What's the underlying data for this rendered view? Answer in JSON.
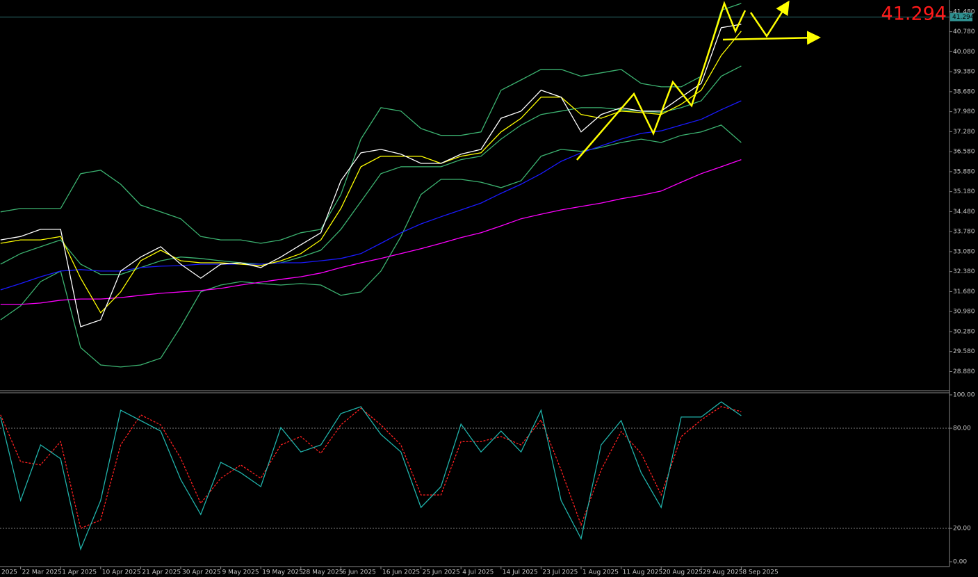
{
  "chart_data": [
    {
      "type": "line",
      "categories": [
        "2025",
        null,
        "22 Mar 2025",
        null,
        "1 Apr 2025",
        null,
        "10 Apr 2025",
        null,
        "21 Apr 2025",
        null,
        "30 Apr 2025",
        null,
        "9 May 2025",
        null,
        "19 May 2025",
        null,
        "28 May 2025",
        null,
        "6 Jun 2025",
        null,
        "16 Jun 2025",
        null,
        "25 Jun 2025",
        null,
        "4 Jul 2025",
        null,
        "14 Jul 2025",
        null,
        "23 Jul 2025",
        null,
        "1 Aug 2025",
        null,
        "11 Aug 2025",
        null,
        "20 Aug 2025",
        null,
        "29 Aug 2025",
        null,
        "8 Sep 2025"
      ],
      "ylim": [
        28.21,
        41.89
      ],
      "yticks": [
        {
          "value": 41.48,
          "label": "41.480"
        },
        {
          "value": 40.78,
          "label": "40.780"
        },
        {
          "value": 40.08,
          "label": "40.080"
        },
        {
          "value": 39.38,
          "label": "39.380"
        },
        {
          "value": 38.68,
          "label": "38.680"
        },
        {
          "value": 37.98,
          "label": "37.980"
        },
        {
          "value": 37.28,
          "label": "37.280"
        },
        {
          "value": 36.58,
          "label": "36.580"
        },
        {
          "value": 35.88,
          "label": "35.880"
        },
        {
          "value": 35.18,
          "label": "35.180"
        },
        {
          "value": 34.48,
          "label": "34.480"
        },
        {
          "value": 33.78,
          "label": "33.780"
        },
        {
          "value": 33.08,
          "label": "33.080"
        },
        {
          "value": 32.38,
          "label": "32.380"
        },
        {
          "value": 31.68,
          "label": "31.680"
        },
        {
          "value": 30.98,
          "label": "30.980"
        },
        {
          "value": 30.28,
          "label": "30.280"
        },
        {
          "value": 29.58,
          "label": "29.580"
        },
        {
          "value": 28.88,
          "label": "28.880"
        }
      ],
      "last_price": 41.294,
      "series": [
        {
          "color": "#3cb371",
          "values": [
            null,
            34.47,
            34.59,
            34.59,
            34.59,
            35.81,
            35.93,
            35.44,
            34.71,
            34.47,
            34.23,
            33.61,
            33.49,
            33.49,
            33.37,
            33.49,
            33.74,
            33.86,
            35.08,
            37.02,
            38.12,
            38.0,
            37.39,
            37.15,
            37.15,
            37.27,
            38.73,
            39.09,
            39.46,
            39.46,
            39.22,
            39.34,
            39.46,
            38.97,
            38.85,
            38.85,
            39.22,
            41.53,
            41.77
          ]
        },
        {
          "color": "#3cb371",
          "values": [
            null,
            32.64,
            33.01,
            33.25,
            33.49,
            32.64,
            32.28,
            32.28,
            32.52,
            32.76,
            32.89,
            32.84,
            32.76,
            32.69,
            32.64,
            32.69,
            32.89,
            33.13,
            33.86,
            34.83,
            35.81,
            36.05,
            36.05,
            36.05,
            36.3,
            36.42,
            37.02,
            37.51,
            37.88,
            38.0,
            38.12,
            38.12,
            38.05,
            38.0,
            37.95,
            38.12,
            38.36,
            39.22,
            39.58
          ]
        },
        {
          "color": "#3cb371",
          "values": [
            null,
            30.69,
            31.18,
            32.03,
            32.4,
            29.72,
            29.11,
            29.04,
            29.11,
            29.35,
            30.45,
            31.67,
            31.91,
            32.03,
            31.96,
            31.91,
            31.96,
            31.91,
            31.55,
            31.67,
            32.4,
            33.61,
            35.08,
            35.61,
            35.61,
            35.51,
            35.32,
            35.56,
            36.42,
            36.66,
            36.59,
            36.73,
            36.9,
            37.02,
            36.9,
            37.15,
            37.27,
            37.51,
            36.9
          ]
        },
        {
          "color": "#ff00ff",
          "values": [
            null,
            31.23,
            31.23,
            31.28,
            31.38,
            31.42,
            31.42,
            31.47,
            31.55,
            31.62,
            31.67,
            31.72,
            31.79,
            31.91,
            32.01,
            32.11,
            32.2,
            32.33,
            32.52,
            32.69,
            32.84,
            33.01,
            33.18,
            33.37,
            33.57,
            33.74,
            33.98,
            34.23,
            34.39,
            34.54,
            34.66,
            34.78,
            34.93,
            35.05,
            35.2,
            35.51,
            35.81,
            36.05,
            36.3
          ]
        },
        {
          "color": "#1a1aff",
          "values": [
            null,
            31.74,
            31.96,
            32.2,
            32.4,
            32.45,
            32.4,
            32.4,
            32.52,
            32.57,
            32.59,
            32.64,
            32.64,
            32.64,
            32.64,
            32.69,
            32.69,
            32.76,
            32.84,
            33.01,
            33.37,
            33.74,
            34.05,
            34.3,
            34.54,
            34.78,
            35.12,
            35.44,
            35.81,
            36.24,
            36.54,
            36.78,
            37.02,
            37.22,
            37.31,
            37.51,
            37.71,
            38.05,
            38.36
          ]
        },
        {
          "color": "#ffff00",
          "values": [
            null,
            33.37,
            33.49,
            33.49,
            33.61,
            32.15,
            30.94,
            31.67,
            32.76,
            33.13,
            32.76,
            32.69,
            32.69,
            32.64,
            32.59,
            32.76,
            33.01,
            33.49,
            34.59,
            36.05,
            36.42,
            36.42,
            36.42,
            36.17,
            36.42,
            36.54,
            37.27,
            37.75,
            38.49,
            38.49,
            37.88,
            37.75,
            38.0,
            37.95,
            37.88,
            38.24,
            38.73,
            39.95,
            40.8
          ]
        },
        {
          "color": "#ffffff",
          "values": [
            null,
            33.49,
            33.61,
            33.86,
            33.86,
            30.45,
            30.69,
            32.4,
            32.89,
            33.25,
            32.64,
            32.15,
            32.64,
            32.69,
            32.52,
            32.89,
            33.32,
            33.74,
            35.56,
            36.54,
            36.66,
            36.49,
            36.17,
            36.17,
            36.49,
            36.66,
            37.75,
            38.0,
            38.73,
            38.49,
            37.27,
            37.88,
            38.12,
            38.0,
            38.0,
            38.49,
            38.97,
            40.92,
            41.04
          ]
        }
      ]
    },
    {
      "type": "line",
      "ylim": [
        -2.9,
        101.25
      ],
      "yticks": [
        {
          "value": 100,
          "label": "100.00"
        },
        {
          "value": 80,
          "label": "80.00"
        },
        {
          "value": 20,
          "label": "20.00"
        },
        {
          "value": 0,
          "label": "0.00"
        }
      ],
      "series": [
        {
          "color": "#ff2020",
          "line_style": "dashed",
          "values": [
            null,
            88,
            60,
            58,
            72,
            20,
            25,
            70,
            88,
            82,
            62,
            35,
            50,
            58,
            50,
            70,
            75,
            65,
            82,
            92,
            82,
            70,
            40,
            40,
            72,
            72,
            75,
            70,
            85,
            55,
            22,
            55,
            78,
            65,
            40,
            75,
            85,
            93,
            90
          ]
        },
        {
          "color": "#20b2aa",
          "line_style": "solid",
          "values": [
            null,
            86.7,
            36.7,
            70,
            61.7,
            7.5,
            36.7,
            90.8,
            84.6,
            78.3,
            49.2,
            28.3,
            59.6,
            53.3,
            45,
            80.4,
            65.8,
            70,
            88.8,
            92.9,
            76.3,
            65.8,
            32.5,
            45,
            82.5,
            65.8,
            78.3,
            65.8,
            90.8,
            36.7,
            13.8,
            70,
            84.6,
            53.3,
            32.5,
            86.7,
            86.7,
            95.8,
            87.5
          ]
        }
      ]
    }
  ]
}
